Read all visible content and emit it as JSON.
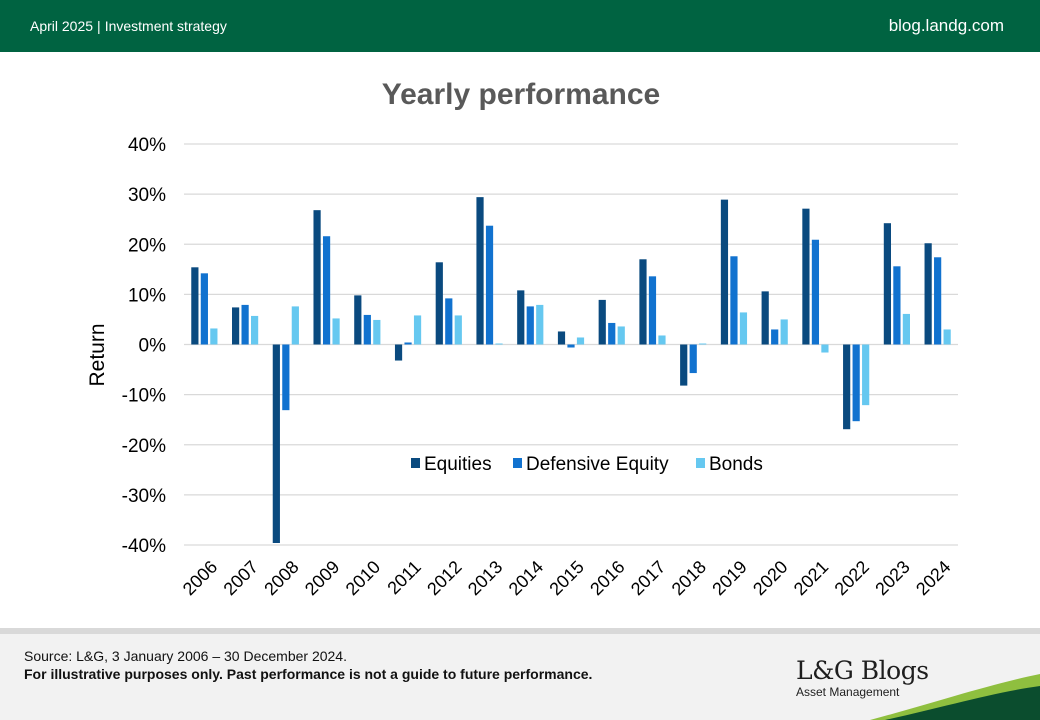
{
  "header": {
    "date": "April 2025",
    "separator": "|",
    "category": "Investment strategy",
    "site": "blog.landg.com"
  },
  "footer": {
    "source": "Source: L&G, 3 January 2006 – 30 December 2024.",
    "disclaimer": "For illustrative purposes only. Past performance is not a guide to future performance.",
    "brand_name": "L&G Blogs",
    "brand_sub": "Asset Management"
  },
  "colors": {
    "header_bg": "#006341",
    "swoosh_dark": "#0b4d2e",
    "swoosh_light": "#8fbf3f",
    "equities": "#0a4a7f",
    "defensive_equity": "#1172cf",
    "bonds": "#66c8f0"
  },
  "chart_data": {
    "type": "bar",
    "title": "Yearly performance",
    "ylabel": "Return",
    "xlabel": "",
    "ylim": [
      -40,
      40
    ],
    "yticks": [
      40,
      30,
      20,
      10,
      0,
      -10,
      -20,
      -30,
      -40
    ],
    "ytick_labels": [
      "40%",
      "30%",
      "20%",
      "10%",
      "0%",
      "-10%",
      "-20%",
      "-30%",
      "-40%"
    ],
    "grid": true,
    "legend_position": "inside-lower-center",
    "categories": [
      "2006",
      "2007",
      "2008",
      "2009",
      "2010",
      "2011",
      "2012",
      "2013",
      "2014",
      "2015",
      "2016",
      "2017",
      "2018",
      "2019",
      "2020",
      "2021",
      "2022",
      "2023",
      "2024"
    ],
    "series": [
      {
        "name": "Equities",
        "values": [
          15.4,
          7.4,
          -39.6,
          26.8,
          9.8,
          -3.2,
          16.4,
          29.4,
          10.8,
          2.6,
          8.9,
          17.0,
          -8.2,
          28.9,
          10.6,
          27.1,
          -16.9,
          24.2,
          20.2
        ]
      },
      {
        "name": "Defensive Equity",
        "values": [
          14.2,
          7.9,
          -13.1,
          21.6,
          5.9,
          0.4,
          9.2,
          23.7,
          7.6,
          -0.6,
          4.3,
          13.6,
          -5.7,
          17.6,
          3.0,
          20.9,
          -15.3,
          15.6,
          17.4
        ]
      },
      {
        "name": "Bonds",
        "values": [
          3.2,
          5.7,
          7.6,
          5.2,
          4.9,
          5.8,
          5.8,
          0.2,
          7.9,
          1.4,
          3.6,
          1.8,
          0.2,
          6.4,
          5.0,
          -1.6,
          -12.1,
          6.1,
          3.0
        ]
      }
    ]
  }
}
